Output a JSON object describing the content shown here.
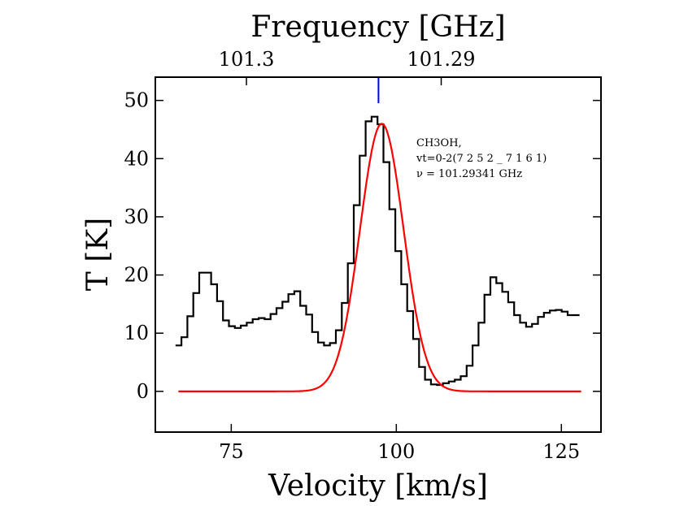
{
  "chart_data": {
    "type": "line",
    "xlabel": "Velocity [km/s]",
    "ylabel": "T [K]",
    "top_xlabel": "Frequency [GHz]",
    "xlim": [
      63.5,
      131
    ],
    "ylim": [
      -7,
      54
    ],
    "xticks": [
      75,
      100,
      125
    ],
    "yticks": [
      0,
      10,
      20,
      30,
      40,
      50
    ],
    "top_ticks": [
      {
        "label": "101.3",
        "velocity": 77.3
      },
      {
        "label": "101.29",
        "velocity": 106.8
      }
    ],
    "grid": false,
    "annotation": {
      "lines": [
        "CH3OH,",
        "vt=0-2(7 2 5 2 _ 7 1 6 1)",
        "ν = 101.29341 GHz"
      ]
    },
    "line_marker": {
      "velocity": 97.3,
      "color": "#0000ff"
    },
    "series": [
      {
        "style": "steps",
        "color": "#000000",
        "x": [
          67.0,
          67.9,
          68.8,
          69.7,
          70.6,
          71.5,
          72.4,
          73.3,
          74.2,
          75.1,
          76.0,
          76.9,
          77.8,
          78.7,
          79.6,
          80.5,
          81.4,
          82.3,
          83.2,
          84.1,
          85.0,
          85.9,
          86.8,
          87.7,
          88.6,
          89.5,
          90.4,
          91.3,
          92.2,
          93.1,
          94.0,
          94.9,
          95.8,
          96.7,
          97.6,
          98.5,
          99.4,
          100.3,
          101.2,
          102.1,
          103.0,
          103.9,
          104.8,
          105.7,
          106.6,
          107.5,
          108.4,
          109.3,
          110.2,
          111.1,
          112.0,
          112.9,
          113.8,
          114.7,
          115.6,
          116.5,
          117.4,
          118.3,
          119.2,
          120.1,
          121.0,
          121.9,
          122.8,
          123.7,
          124.6,
          125.5,
          126.4,
          127.3
        ],
        "y": [
          7.9,
          9.3,
          12.9,
          16.9,
          20.4,
          20.4,
          18.4,
          15.5,
          12.2,
          11.2,
          10.9,
          11.3,
          11.8,
          12.4,
          12.6,
          12.4,
          13.3,
          14.3,
          15.4,
          16.7,
          17.2,
          14.7,
          13.2,
          10.2,
          8.4,
          7.9,
          8.3,
          10.5,
          15.2,
          22.0,
          32.0,
          40.5,
          46.4,
          47.2,
          45.9,
          39.4,
          31.3,
          24.1,
          18.4,
          13.8,
          9.0,
          4.2,
          2.0,
          1.2,
          1.1,
          1.4,
          1.7,
          2.0,
          2.6,
          4.4,
          7.9,
          11.8,
          16.6,
          19.6,
          18.6,
          17.1,
          15.3,
          13.1,
          11.8,
          11.1,
          11.6,
          12.8,
          13.5,
          13.9,
          14.0,
          13.7,
          13.1,
          13.1
        ]
      },
      {
        "style": "gaussian",
        "color": "#ff0000",
        "amplitude": 46.0,
        "center": 97.8,
        "sigma": 3.3,
        "x_range": [
          67.0,
          128.0
        ]
      }
    ]
  }
}
